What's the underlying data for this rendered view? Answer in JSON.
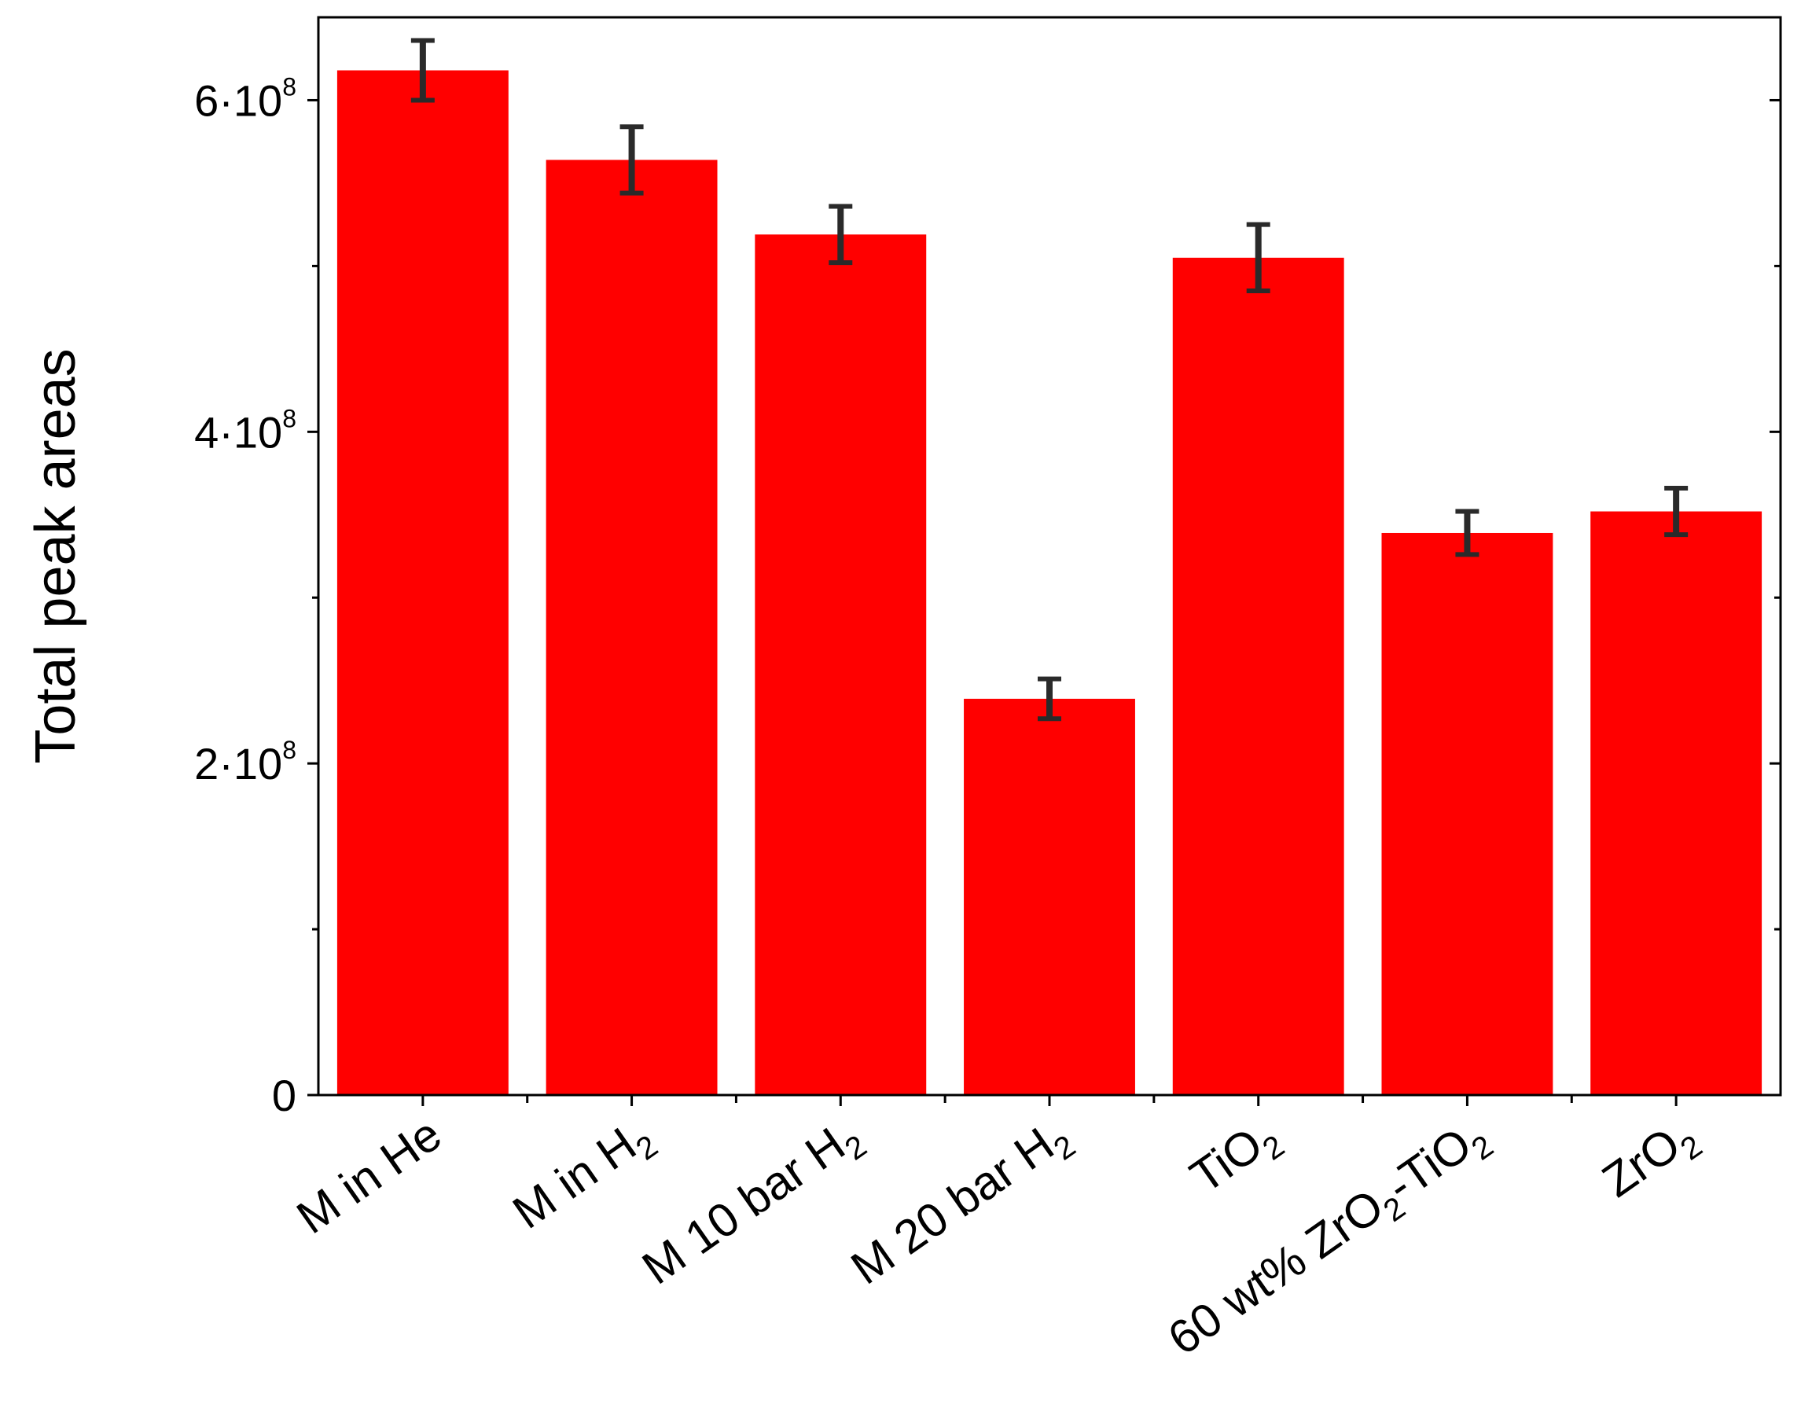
{
  "chart_data": {
    "type": "bar",
    "ylabel": "Total peak areas",
    "xlabel": "",
    "title": "",
    "ylim": [
      0,
      650000000
    ],
    "yticks": [
      {
        "value": 0,
        "mantissa": "0",
        "exp": ""
      },
      {
        "value": 200000000,
        "mantissa": "2·10",
        "exp": "8"
      },
      {
        "value": 400000000,
        "mantissa": "4·10",
        "exp": "8"
      },
      {
        "value": 600000000,
        "mantissa": "6·10",
        "exp": "8"
      }
    ],
    "minor_yticks": [
      100000000,
      300000000,
      500000000
    ],
    "categories": [
      {
        "parts": [
          {
            "t": "M in He"
          }
        ]
      },
      {
        "parts": [
          {
            "t": "M in H"
          },
          {
            "t": "2",
            "sub": true
          }
        ]
      },
      {
        "parts": [
          {
            "t": "M 10 bar H"
          },
          {
            "t": "2",
            "sub": true
          }
        ]
      },
      {
        "parts": [
          {
            "t": "M 20 bar H"
          },
          {
            "t": "2",
            "sub": true
          }
        ]
      },
      {
        "parts": [
          {
            "t": "TiO"
          },
          {
            "t": "2",
            "sub": true
          }
        ]
      },
      {
        "parts": [
          {
            "t": "60 wt% ZrO"
          },
          {
            "t": "2",
            "sub": true
          },
          {
            "t": "-TiO"
          },
          {
            "t": "2",
            "sub": true
          }
        ]
      },
      {
        "parts": [
          {
            "t": "ZrO"
          },
          {
            "t": "2",
            "sub": true
          }
        ]
      }
    ],
    "values": [
      618000000,
      564000000,
      519000000,
      239000000,
      505000000,
      339000000,
      352000000
    ],
    "errors": [
      18000000,
      20000000,
      17000000,
      12000000,
      20000000,
      13000000,
      14000000
    ],
    "bar_color": "#ff0000",
    "error_bar_color": "#2a2a2a",
    "grid": false,
    "legend": "none"
  }
}
